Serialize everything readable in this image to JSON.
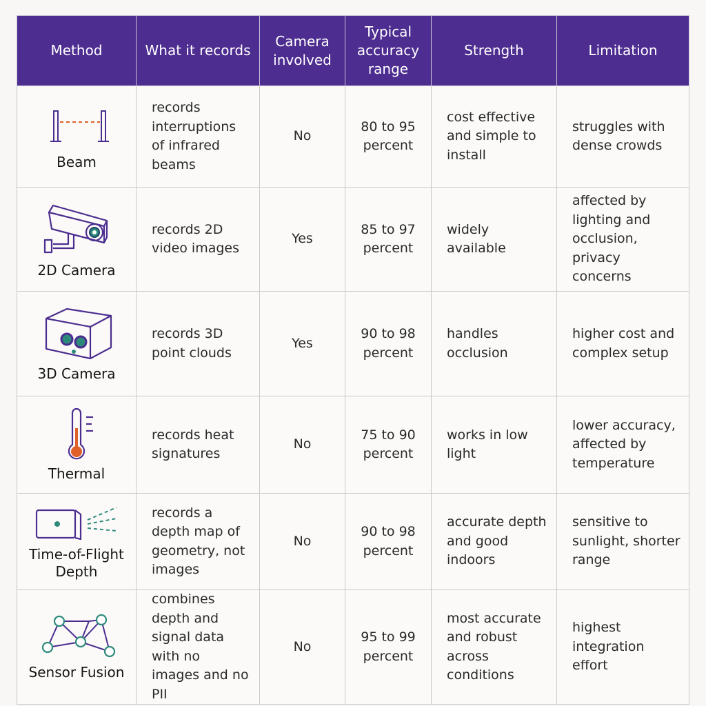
{
  "header": {
    "method": "Method",
    "what_records": "What it records",
    "camera": "Camera involved",
    "accuracy": "Typical accuracy range",
    "strength": "Strength",
    "limitation": "Limitation"
  },
  "rows": [
    {
      "method": "Beam",
      "icon": "beam-icon",
      "records": "records interruptions of infrared beams",
      "camera": "No",
      "accuracy": "80 to 95 percent",
      "strength": "cost effective and simple to install",
      "limitation": "struggles with dense crowds"
    },
    {
      "method": "2D Camera",
      "icon": "security-camera-icon",
      "records": "records 2D video images",
      "camera": "Yes",
      "accuracy": "85 to 97 percent",
      "strength": "widely available",
      "limitation": "affected by lighting and occlusion, privacy concerns"
    },
    {
      "method": "3D Camera",
      "icon": "stereo-camera-icon",
      "records": "records 3D point clouds",
      "camera": "Yes",
      "accuracy": "90 to 98 percent",
      "strength": "handles occlusion",
      "limitation": "higher cost and complex setup"
    },
    {
      "method": "Thermal",
      "icon": "thermometer-icon",
      "records": "records heat signatures",
      "camera": "No",
      "accuracy": "75 to 90 percent",
      "strength": "works in low light",
      "limitation": "lower accuracy, affected by temperature"
    },
    {
      "method": "Time-of-Flight Depth",
      "icon": "tof-sensor-icon",
      "records": "records a depth map of geometry, not images",
      "camera": "No",
      "accuracy": "90 to 98 percent",
      "strength": "accurate depth and good indoors",
      "limitation": "sensitive to sunlight, shorter range"
    },
    {
      "method": "Sensor Fusion",
      "icon": "network-nodes-icon",
      "records": "combines depth and signal data with no images and no PII",
      "camera": "No",
      "accuracy": "95 to 99 percent",
      "strength": "most accurate and robust across conditions",
      "limitation": "highest integration effort"
    }
  ],
  "colors": {
    "header_bg": "#4e2d91",
    "icon_purple": "#4b2d8f",
    "icon_teal": "#2d8a7a",
    "icon_orange": "#e0602a"
  }
}
